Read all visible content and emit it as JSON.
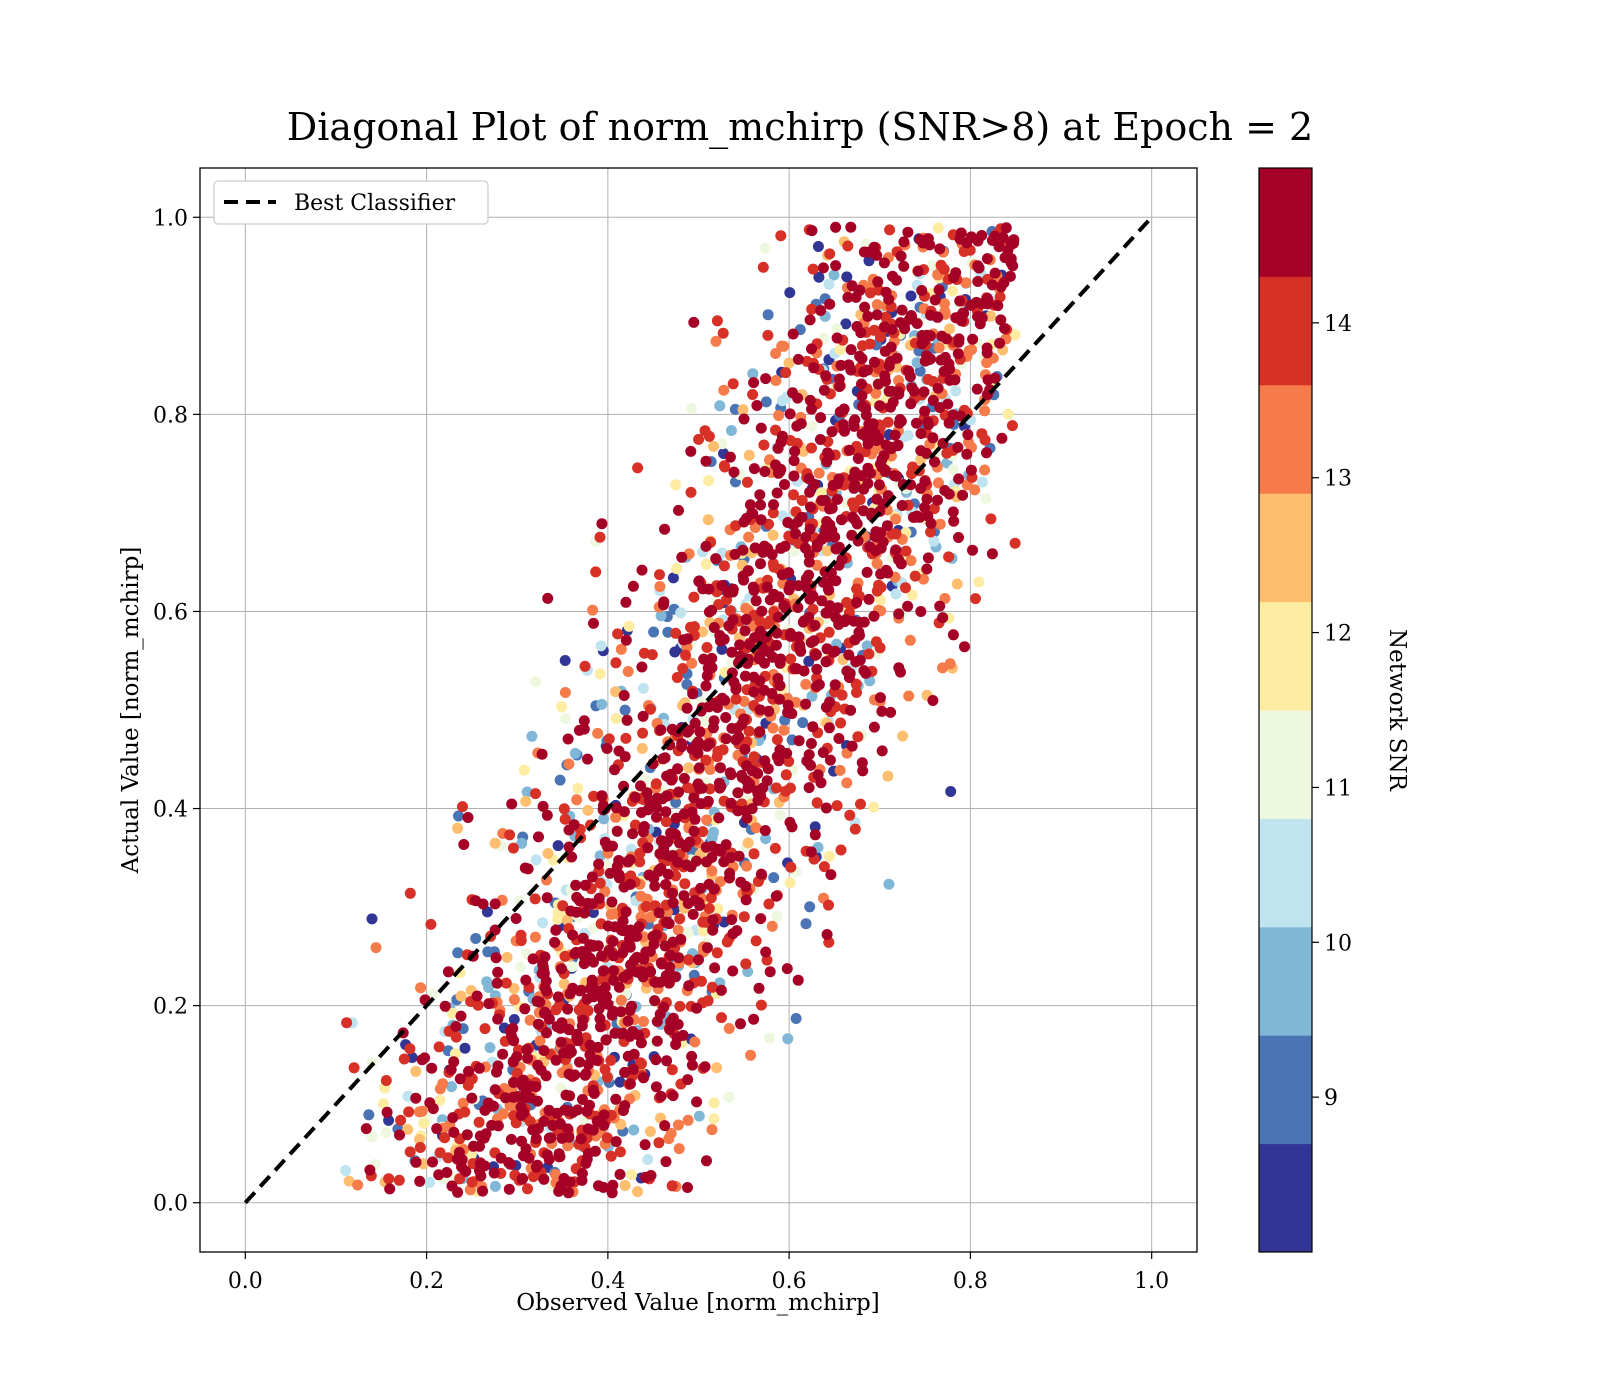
{
  "chart_data": {
    "type": "scatter",
    "title": "Diagonal Plot of norm_mchirp (SNR>8) at Epoch = 2",
    "xlabel": "Observed Value [norm_mchirp]",
    "ylabel": "Actual Value [norm_mchirp]",
    "xlim": [
      -0.05,
      1.05
    ],
    "ylim": [
      -0.05,
      1.05
    ],
    "x_ticks": [
      "0.0",
      "0.2",
      "0.4",
      "0.6",
      "0.8",
      "1.0"
    ],
    "y_ticks": [
      "0.0",
      "0.2",
      "0.4",
      "0.6",
      "0.8",
      "1.0"
    ],
    "grid": true,
    "legend": {
      "placement": "upper-left",
      "entries": [
        "Best Classifier"
      ]
    },
    "reference_line": {
      "name": "Best Classifier",
      "x": [
        0.0,
        1.0
      ],
      "y": [
        0.0,
        1.0
      ],
      "style": "dashed",
      "color": "#000000"
    },
    "colorbar": {
      "label": "Network SNR",
      "min": 8.0,
      "max": 15.0,
      "levels": 10,
      "colors": [
        "#313695",
        "#4a74b4",
        "#80b6d6",
        "#bfe3ef",
        "#eef8df",
        "#feeca2",
        "#fdbe70",
        "#f67b4a",
        "#d73027",
        "#a50026"
      ],
      "ticks": [
        "9",
        "10",
        "11",
        "12",
        "13",
        "14"
      ],
      "tick_values": [
        9,
        10,
        11,
        12,
        13,
        14
      ]
    },
    "point_cloud": {
      "description_count": 3000,
      "observed_spread": "points lie in a band: observed ≈ 0.27 + 0.55 × actual, width ≈ ±0.16",
      "high_snr_color": "#a50026",
      "low_snr_color": "#313695"
    }
  }
}
